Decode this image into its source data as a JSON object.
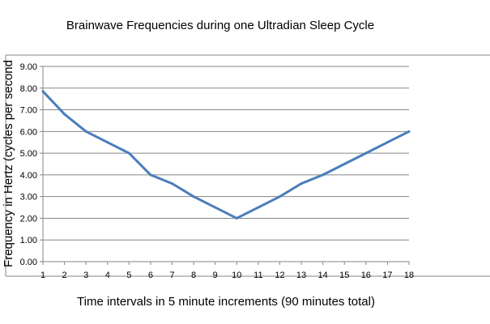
{
  "chart_data": {
    "type": "line",
    "title": "Brainwave Frequencies during one Ultradian Sleep Cycle",
    "xlabel": "Time intervals in 5 minute increments (90 minutes total)",
    "ylabel": "Frequency in Hertz (cycles per second",
    "x": [
      1,
      2,
      3,
      4,
      5,
      6,
      7,
      8,
      9,
      10,
      11,
      12,
      13,
      14,
      15,
      16,
      17,
      18
    ],
    "x_tick_labels": [
      "1",
      "2",
      "3",
      "4",
      "5",
      "6",
      "7",
      "8",
      "9",
      "10",
      "11",
      "12",
      "13",
      "14",
      "15",
      "16",
      "17",
      "18"
    ],
    "y_tick_labels": [
      "0.00",
      "1.00",
      "2.00",
      "3.00",
      "4.00",
      "5.00",
      "6.00",
      "7.00",
      "8.00",
      "9.00"
    ],
    "series": [
      {
        "values": [
          7.85,
          6.8,
          6.0,
          5.5,
          5.0,
          4.0,
          3.6,
          3.0,
          2.5,
          2.0,
          2.5,
          3.0,
          3.6,
          4.0,
          4.5,
          5.0,
          5.5,
          6.0
        ],
        "color": "#4a7ebb"
      }
    ],
    "ylim": [
      0,
      9
    ],
    "xlim": [
      1,
      18
    ],
    "grid": "horizontal",
    "legend": "none"
  }
}
